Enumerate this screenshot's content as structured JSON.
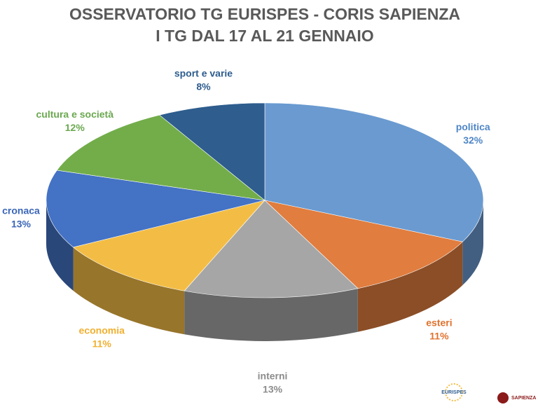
{
  "chart_data": {
    "type": "pie3d",
    "title": "OSSERVATORIO TG EURISPES - CORIS SAPIENZA",
    "subtitle": "I TG DAL 17 AL 21 GENNAIO",
    "categories": [
      "politica",
      "esteri",
      "interni",
      "economia",
      "cronaca",
      "cultura e società",
      "sport e varie"
    ],
    "values": [
      32,
      11,
      13,
      11,
      13,
      12,
      8
    ],
    "value_labels": [
      "32%",
      "11%",
      "13%",
      "11%",
      "13%",
      "12%",
      "8%"
    ],
    "colors": [
      "#6a9ad0",
      "#e07d3f",
      "#a6a6a6",
      "#f3bd45",
      "#4472c4",
      "#72ad4a",
      "#2e5d8e"
    ],
    "label_colors": [
      "#4f86c6",
      "#e0722e",
      "#8c8c8c",
      "#f0b030",
      "#3a66b8",
      "#6aa84f",
      "#2e5d8e"
    ],
    "logos": [
      "EURISPES",
      "SAPIENZA"
    ]
  }
}
